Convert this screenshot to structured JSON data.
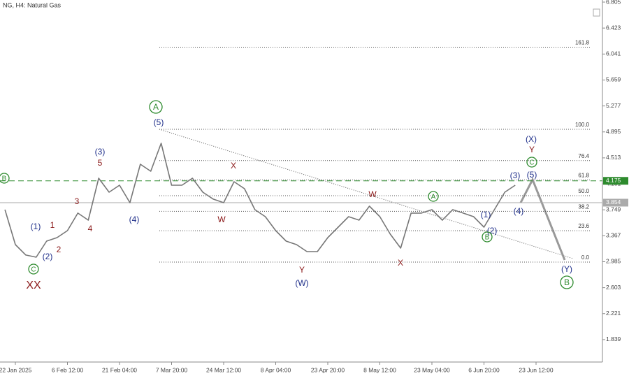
{
  "chart_data": {
    "type": "line",
    "title": "NG, H4: Natural Gas",
    "categories": [
      null,
      "22 Jan 2025",
      null,
      null,
      null,
      null,
      "6 Feb 12:00",
      null,
      null,
      null,
      null,
      "21 Feb 04:00",
      null,
      null,
      null,
      null,
      "7 Mar 20:00",
      null,
      null,
      null,
      null,
      "24 Mar 12:00",
      null,
      null,
      null,
      null,
      "8 Apr 04:00",
      null,
      null,
      null,
      null,
      "23 Apr 20:00",
      null,
      null,
      null,
      null,
      "8 May 12:00",
      null,
      null,
      null,
      null,
      "23 May 04:00",
      null,
      null,
      null,
      null,
      "6 Jun 20:00",
      null,
      null,
      null,
      null,
      "23 Jun 12:00",
      null,
      null,
      null,
      null
    ],
    "series": [
      {
        "name": "NG",
        "color": "#777777",
        "values": [
          3.751,
          3.237,
          3.083,
          3.052,
          3.288,
          3.34,
          3.442,
          3.7,
          3.597,
          4.214,
          4.008,
          4.111,
          3.854,
          4.419,
          4.316,
          4.728,
          4.111,
          4.111,
          4.214,
          4.008,
          3.906,
          3.854,
          4.162,
          4.059,
          3.751,
          3.648,
          3.442,
          3.288,
          3.237,
          3.134,
          3.134,
          3.34,
          3.494,
          3.648,
          3.597,
          3.802,
          3.648,
          3.391,
          3.185,
          3.7,
          3.7,
          3.751,
          3.597,
          3.751,
          3.7,
          3.648,
          3.494,
          3.751,
          4.008,
          4.111,
          null,
          null,
          null,
          null,
          null,
          null
        ]
      }
    ],
    "ylim": [
      1.509,
      6.836
    ],
    "yticks": [
      6.805,
      6.423,
      6.041,
      5.659,
      5.277,
      4.895,
      4.513,
      4.131,
      3.749,
      3.367,
      2.985,
      2.603,
      2.221,
      1.839
    ],
    "price_lines": [
      {
        "value": 4.175,
        "label": "4.175",
        "color": "#2e8b2e"
      },
      {
        "value": 3.854,
        "label": "3.854",
        "color": "#aaaaaa"
      }
    ],
    "fibonacci": {
      "low": 2.98,
      "high": 4.934,
      "levels": [
        {
          "value": 161.8,
          "label": "161.8"
        },
        {
          "value": 100,
          "label": "100.0"
        },
        {
          "value": 76.4,
          "label": "76.4"
        },
        {
          "value": 61.8,
          "label": "61.8"
        },
        {
          "value": 50,
          "label": "50.0"
        },
        {
          "value": 38.2,
          "label": "38.2"
        },
        {
          "value": 23.6,
          "label": "23.6"
        },
        {
          "value": 0,
          "label": "0.0"
        }
      ]
    },
    "annotations": [
      {
        "text": "XX",
        "color": "#8b1a1a"
      },
      {
        "text": "1",
        "color": "#8b1a1a"
      },
      {
        "text": "2",
        "color": "#8b1a1a"
      },
      {
        "text": "3",
        "color": "#8b1a1a"
      },
      {
        "text": "4",
        "color": "#8b1a1a"
      },
      {
        "text": "5",
        "color": "#8b1a1a"
      },
      {
        "text": "X",
        "color": "#8b1a1a"
      },
      {
        "text": "W",
        "color": "#8b1a1a"
      },
      {
        "text": "Y",
        "color": "#8b1a1a"
      },
      {
        "text": "W",
        "color": "#8b1a1a"
      },
      {
        "text": "X",
        "color": "#8b1a1a"
      },
      {
        "text": "Y",
        "color": "#8b1a1a"
      },
      {
        "text": "(1)",
        "color": "#1f2f8a"
      },
      {
        "text": "(2)",
        "color": "#1f2f8a"
      },
      {
        "text": "(3)",
        "color": "#1f2f8a"
      },
      {
        "text": "(4)",
        "color": "#1f2f8a"
      },
      {
        "text": "(5)",
        "color": "#1f2f8a"
      },
      {
        "text": "(W)",
        "color": "#1f2f8a"
      },
      {
        "text": "(1)",
        "color": "#1f2f8a"
      },
      {
        "text": "(2)",
        "color": "#1f2f8a"
      },
      {
        "text": "(3)",
        "color": "#1f2f8a"
      },
      {
        "text": "(4)",
        "color": "#1f2f8a"
      },
      {
        "text": "(5)",
        "color": "#1f2f8a"
      },
      {
        "text": "(X)",
        "color": "#1f2f8a"
      },
      {
        "text": "(Y)",
        "color": "#1f2f8a"
      },
      {
        "text": "C",
        "color": "#2e8b2e",
        "circled": true
      },
      {
        "text": "A",
        "color": "#2e8b2e",
        "circled": true
      },
      {
        "text": "A",
        "color": "#2e8b2e",
        "circled": true
      },
      {
        "text": "B",
        "color": "#2e8b2e",
        "circled": true
      },
      {
        "text": "C",
        "color": "#2e8b2e",
        "circled": true
      },
      {
        "text": "B",
        "color": "#2e8b2e",
        "circled": true
      },
      {
        "text": "B",
        "color": "#2e8b2e",
        "circled": true
      }
    ]
  }
}
